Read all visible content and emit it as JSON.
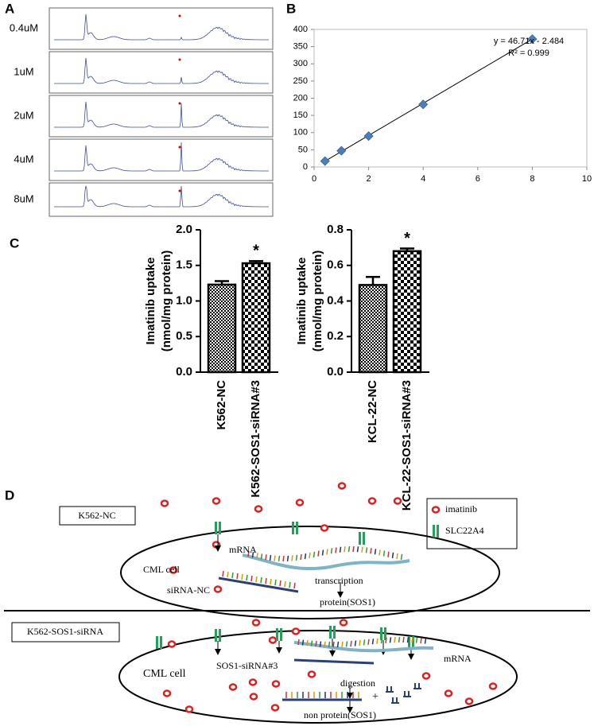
{
  "panel_a": {
    "letter": "A",
    "concentrations": [
      "0.4uM",
      "1uM",
      "2uM",
      "4uM",
      "8uM"
    ]
  },
  "chart_data": [
    {
      "type": "scatter",
      "panel": "B",
      "x": [
        0.4,
        1,
        2,
        4,
        8
      ],
      "y": [
        17,
        47,
        90,
        182,
        372
      ],
      "color": "#4a7ebb",
      "xlim": [
        0,
        10
      ],
      "xticks": [
        0,
        2,
        4,
        6,
        8,
        10
      ],
      "ylim": [
        0,
        400
      ],
      "yticks": [
        0,
        50,
        100,
        150,
        200,
        250,
        300,
        350,
        400
      ],
      "annotations": [
        "y = 46.71x - 2.484",
        "R² = 0.999"
      ]
    },
    {
      "type": "bar",
      "panel": "C",
      "categories": [
        "K562-NC",
        "K562-SOS1-siRNA#3"
      ],
      "values": [
        1.23,
        1.53
      ],
      "errors": [
        0.05,
        0.03
      ],
      "significance": [
        null,
        "*"
      ],
      "ylabel": [
        "Imatinib uptake",
        "(nmol/mg protein)"
      ],
      "color": "#000000",
      "ylim": [
        0,
        2
      ],
      "yticks": [
        {
          "value": 0,
          "label": "0.0"
        },
        {
          "value": 0.5,
          "label": "0.5"
        },
        {
          "value": 1,
          "label": "1.0"
        },
        {
          "value": 1.5,
          "label": "1.5"
        },
        {
          "value": 2,
          "label": "2.0"
        }
      ]
    },
    {
      "type": "bar",
      "categories": [
        "KCL-22-NC",
        "KCL-22-SOS1-siRNA#3"
      ],
      "values": [
        0.49,
        0.68
      ],
      "errors": [
        0.045,
        0.015
      ],
      "significance": [
        null,
        "*"
      ],
      "ylabel": [
        "Imatinib uptake",
        "(nmol/mg protein)"
      ],
      "color": "#000000",
      "ylim": [
        0,
        0.8
      ],
      "yticks": [
        {
          "value": 0,
          "label": "0.0"
        },
        {
          "value": 0.2,
          "label": "0.2"
        },
        {
          "value": 0.4,
          "label": "0.4"
        },
        {
          "value": 0.6,
          "label": "0.6"
        },
        {
          "value": 0.8,
          "label": "0.8"
        }
      ]
    }
  ],
  "panel_d": {
    "letter": "D",
    "legend": {
      "imatinib": "imatinib",
      "transporter": "SLC22A4"
    },
    "top": {
      "label": "K562-NC",
      "mrna": "mRNA",
      "cell": "CML cell",
      "transcription": "transcription",
      "sirna": "siRNA-NC",
      "protein": "protein(SOS1)"
    },
    "bottom": {
      "label": "K562-SOS1-siRNA",
      "sirna": "SOS1-siRNA#3",
      "mrna": "mRNA",
      "cell": "CML cell",
      "digestion": "digestion",
      "plus": "+",
      "result": "non protein(SOS1)"
    }
  }
}
